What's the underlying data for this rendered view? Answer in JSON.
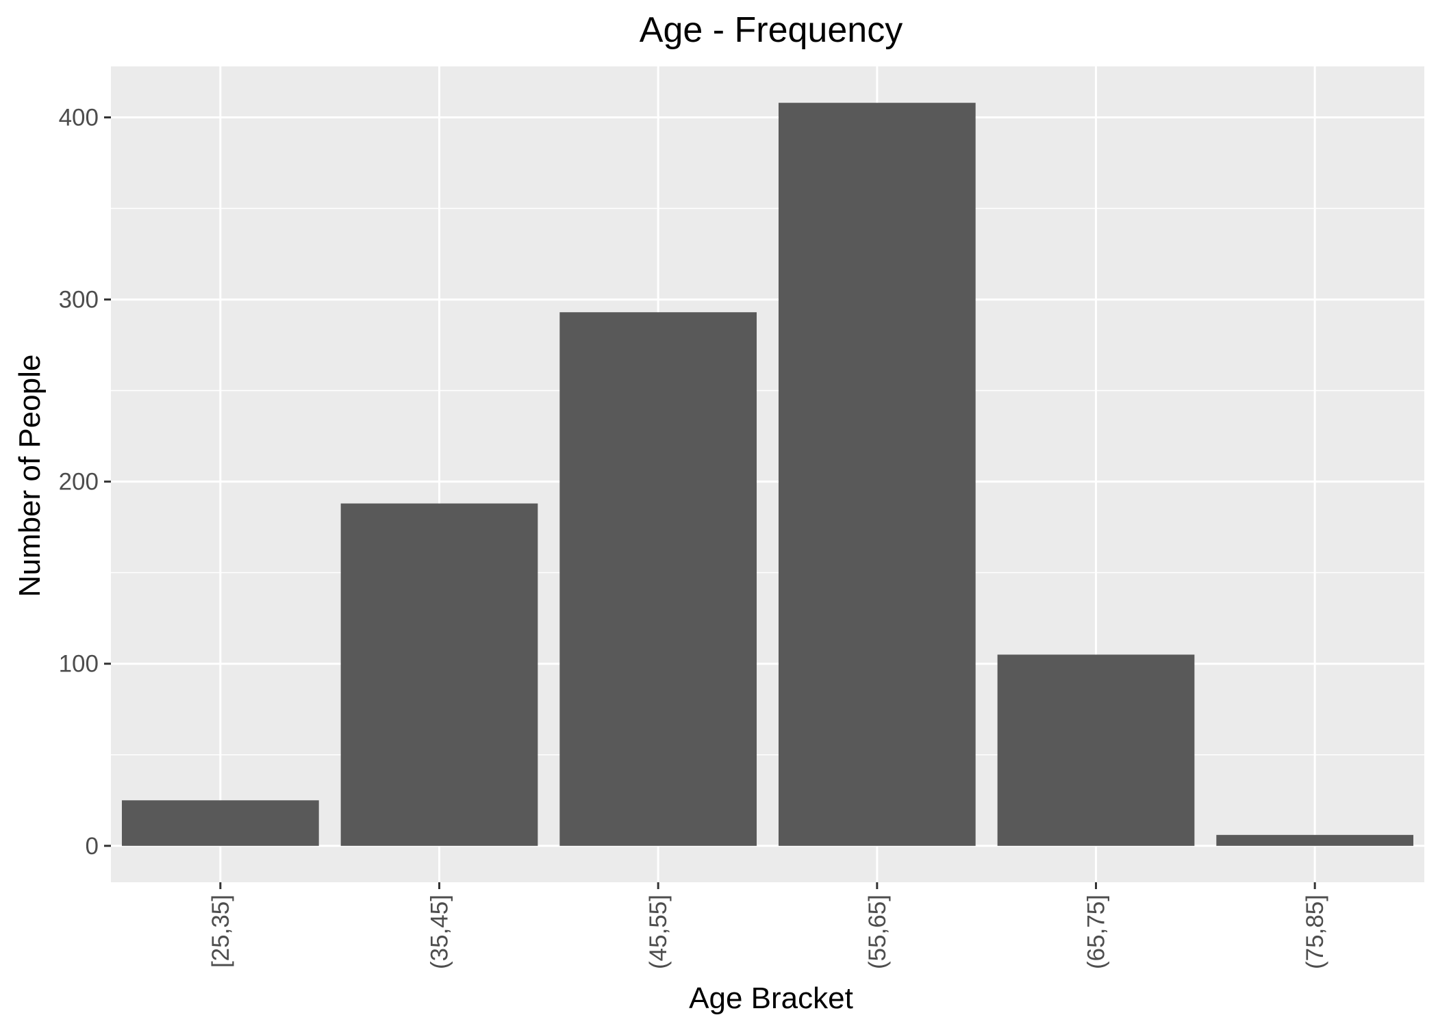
{
  "chart_data": {
    "type": "bar",
    "title": "Age - Frequency",
    "xlabel": "Age Bracket",
    "ylabel": "Number of People",
    "categories": [
      "[25,35]",
      "(35,45]",
      "(45,55]",
      "(55,65]",
      "(65,75]",
      "(75,85]"
    ],
    "values": [
      25,
      188,
      293,
      408,
      105,
      6
    ],
    "ylim": [
      -20,
      428
    ],
    "yticks": [
      0,
      100,
      200,
      300,
      400
    ],
    "grid": true,
    "legend": "none",
    "x_tick_rotation": "vertical",
    "colors": {
      "bar": "#595959",
      "panel_background": "#ebebeb",
      "grid": "#ffffff",
      "tick_label": "#4d4d4d",
      "text": "#000000"
    }
  }
}
